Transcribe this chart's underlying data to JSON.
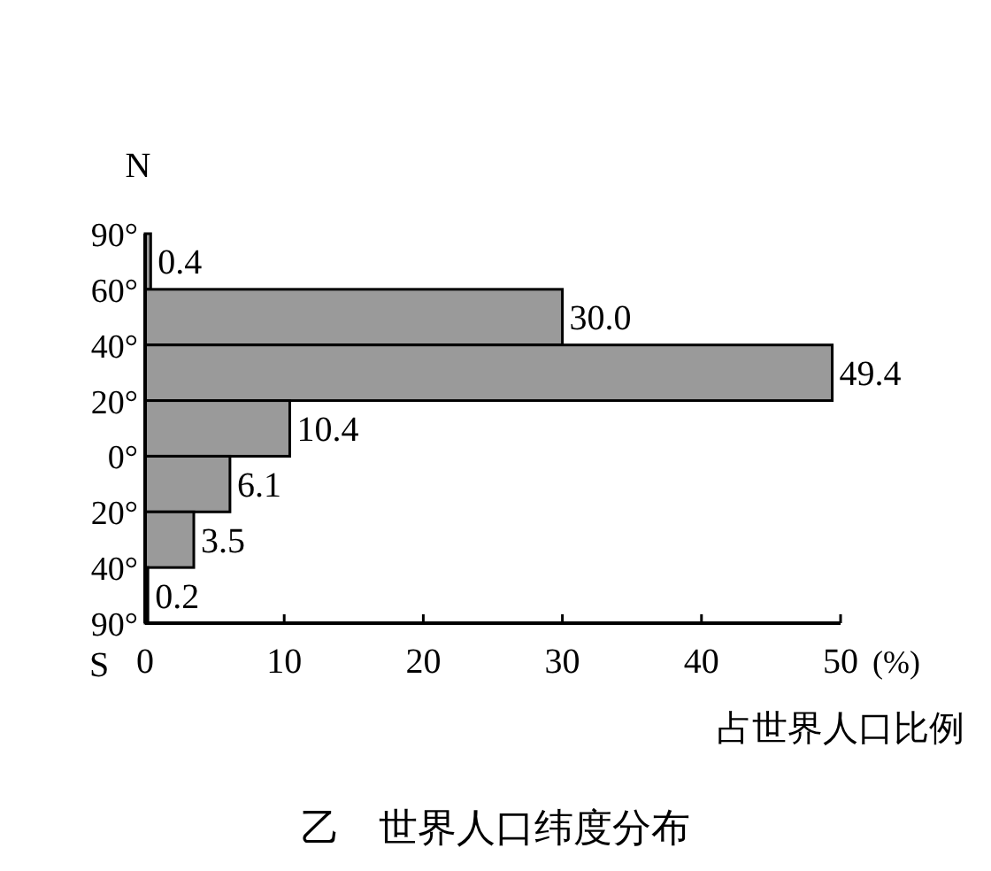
{
  "chart_data": {
    "type": "bar",
    "orientation": "horizontal",
    "title": "乙　世界人口纬度分布",
    "xlabel": "占世界人口比例",
    "categories": [
      null,
      null,
      null,
      null,
      null,
      null,
      null
    ],
    "values": [
      0.4,
      30.0,
      49.4,
      10.4,
      6.1,
      3.5,
      0.2
    ],
    "value_labels": [
      "0.4",
      "30.0",
      "49.4",
      "10.4",
      "6.1",
      "3.5",
      "0.2"
    ],
    "color": "#9a9a9a",
    "xlim": [
      0,
      50
    ],
    "xticks": [
      0,
      10,
      20,
      30,
      40,
      50
    ],
    "grid": false,
    "annotations": [
      "N",
      "90°",
      "60°",
      "40°",
      "20°",
      "0°",
      "20°",
      "40°",
      "90°",
      "S",
      "(%)"
    ]
  }
}
